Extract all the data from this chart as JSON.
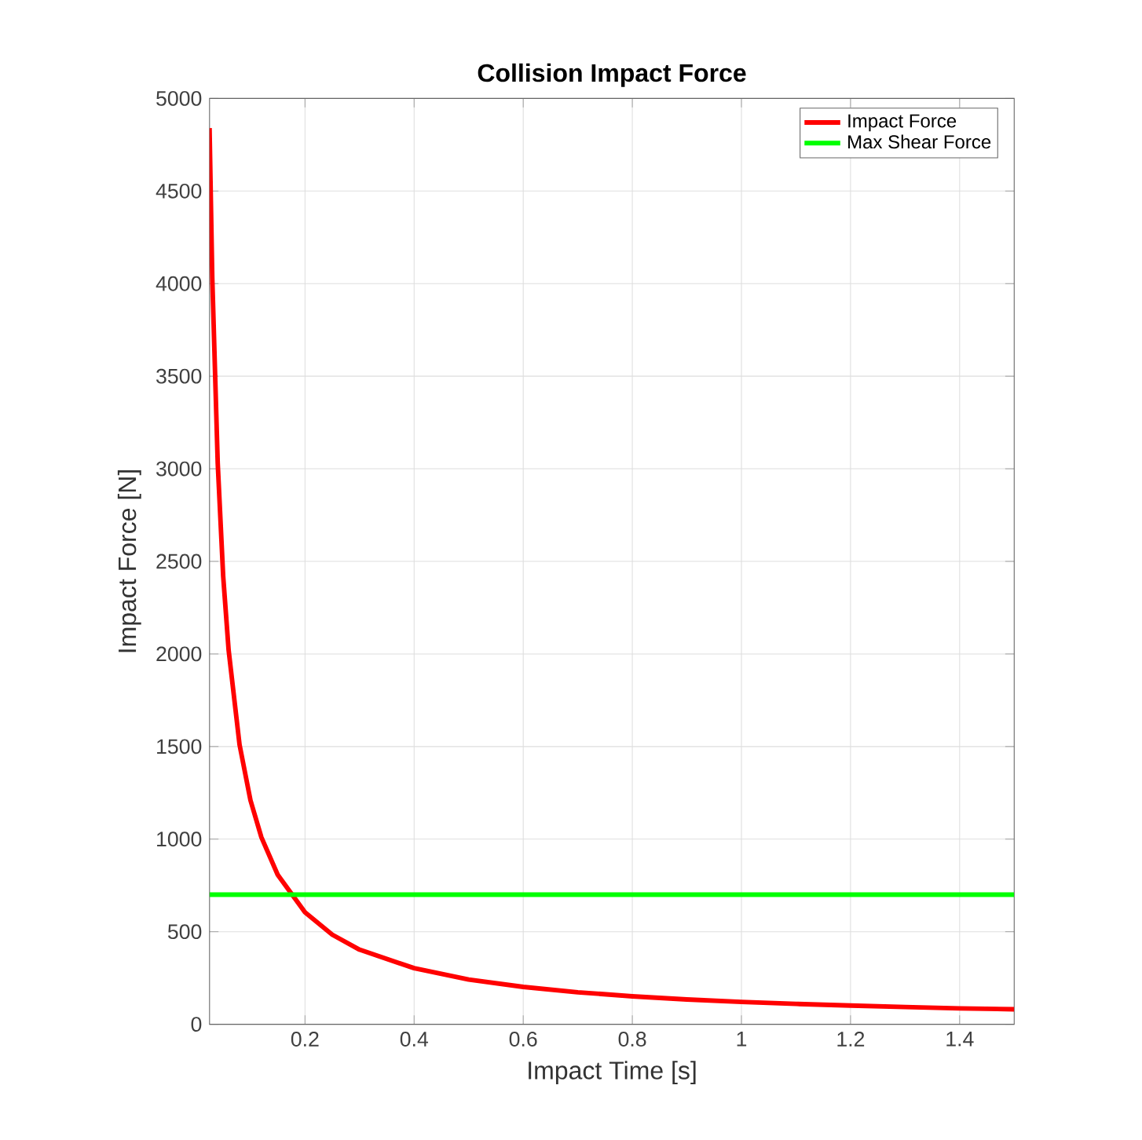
{
  "chart_data": {
    "type": "line",
    "title": "**Collision Impact Force**",
    "xlabel": "Impact Time [s]",
    "ylabel": "Impact Force [N]",
    "xlim": [
      0.025,
      1.5
    ],
    "xticks": [
      0.2,
      0.4,
      0.6,
      0.8,
      1,
      1.2,
      1.4
    ],
    "ylim": [
      0,
      5000
    ],
    "yticks": [
      0,
      500,
      1000,
      1500,
      2000,
      2500,
      3000,
      3500,
      4000,
      4500,
      5000
    ],
    "grid": true,
    "legend": "top right",
    "marker": "none",
    "line_style": "solid",
    "series": [
      {
        "name": "Impact Force",
        "color": "#ff0000",
        "x": [
          0.025,
          0.03,
          0.04,
          0.05,
          0.06,
          0.08,
          0.1,
          0.12,
          0.15,
          0.2,
          0.25,
          0.3,
          0.4,
          0.5,
          0.6,
          0.7,
          0.8,
          0.9,
          1.0,
          1.1,
          1.2,
          1.3,
          1.4,
          1.5
        ],
        "values": [
          4840,
          4030,
          3030,
          2420,
          2020,
          1510,
          1210,
          1010,
          807,
          605,
          484,
          403,
          303,
          242,
          202,
          173,
          151,
          134,
          121,
          110,
          101,
          93,
          86,
          81
        ]
      },
      {
        "name": "Max Shear Force",
        "color": "#00ff00",
        "x": [
          0.025,
          1.5
        ],
        "values": [
          700,
          700
        ]
      }
    ]
  }
}
